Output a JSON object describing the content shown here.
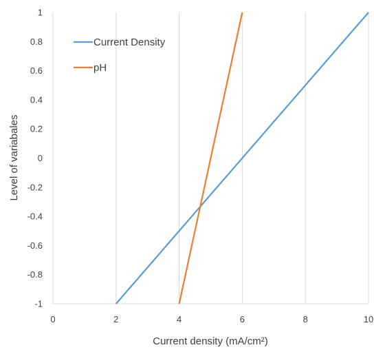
{
  "chart_data": {
    "type": "line",
    "title": "",
    "xlabel": "Current density (mA/cm²)",
    "ylabel": "Level of variabales",
    "xlim": [
      0,
      10
    ],
    "ylim": [
      -1,
      1
    ],
    "x_ticks": [
      0,
      2,
      4,
      6,
      8,
      10
    ],
    "y_ticks": [
      1,
      0.8,
      0.6,
      0.4,
      0.2,
      0,
      -0.2,
      -0.4,
      -0.6,
      -0.8,
      -1
    ],
    "x_tick_labels": [
      "0",
      "2",
      "4",
      "6",
      "8",
      "10"
    ],
    "y_tick_labels": [
      "1",
      "0.8",
      "0.6",
      "0.4",
      "0.2",
      "0",
      "-0.2",
      "-0.4",
      "-0.6",
      "-0.8",
      "-1"
    ],
    "grid": "vertical",
    "legend_position": "top-left",
    "series": [
      {
        "name": "Current Density",
        "color": "#5B9BD5",
        "x": [
          2,
          10
        ],
        "y": [
          -1,
          1
        ]
      },
      {
        "name": "pH",
        "color": "#ED7D31",
        "x": [
          4,
          6
        ],
        "y": [
          -1,
          1
        ]
      }
    ]
  }
}
